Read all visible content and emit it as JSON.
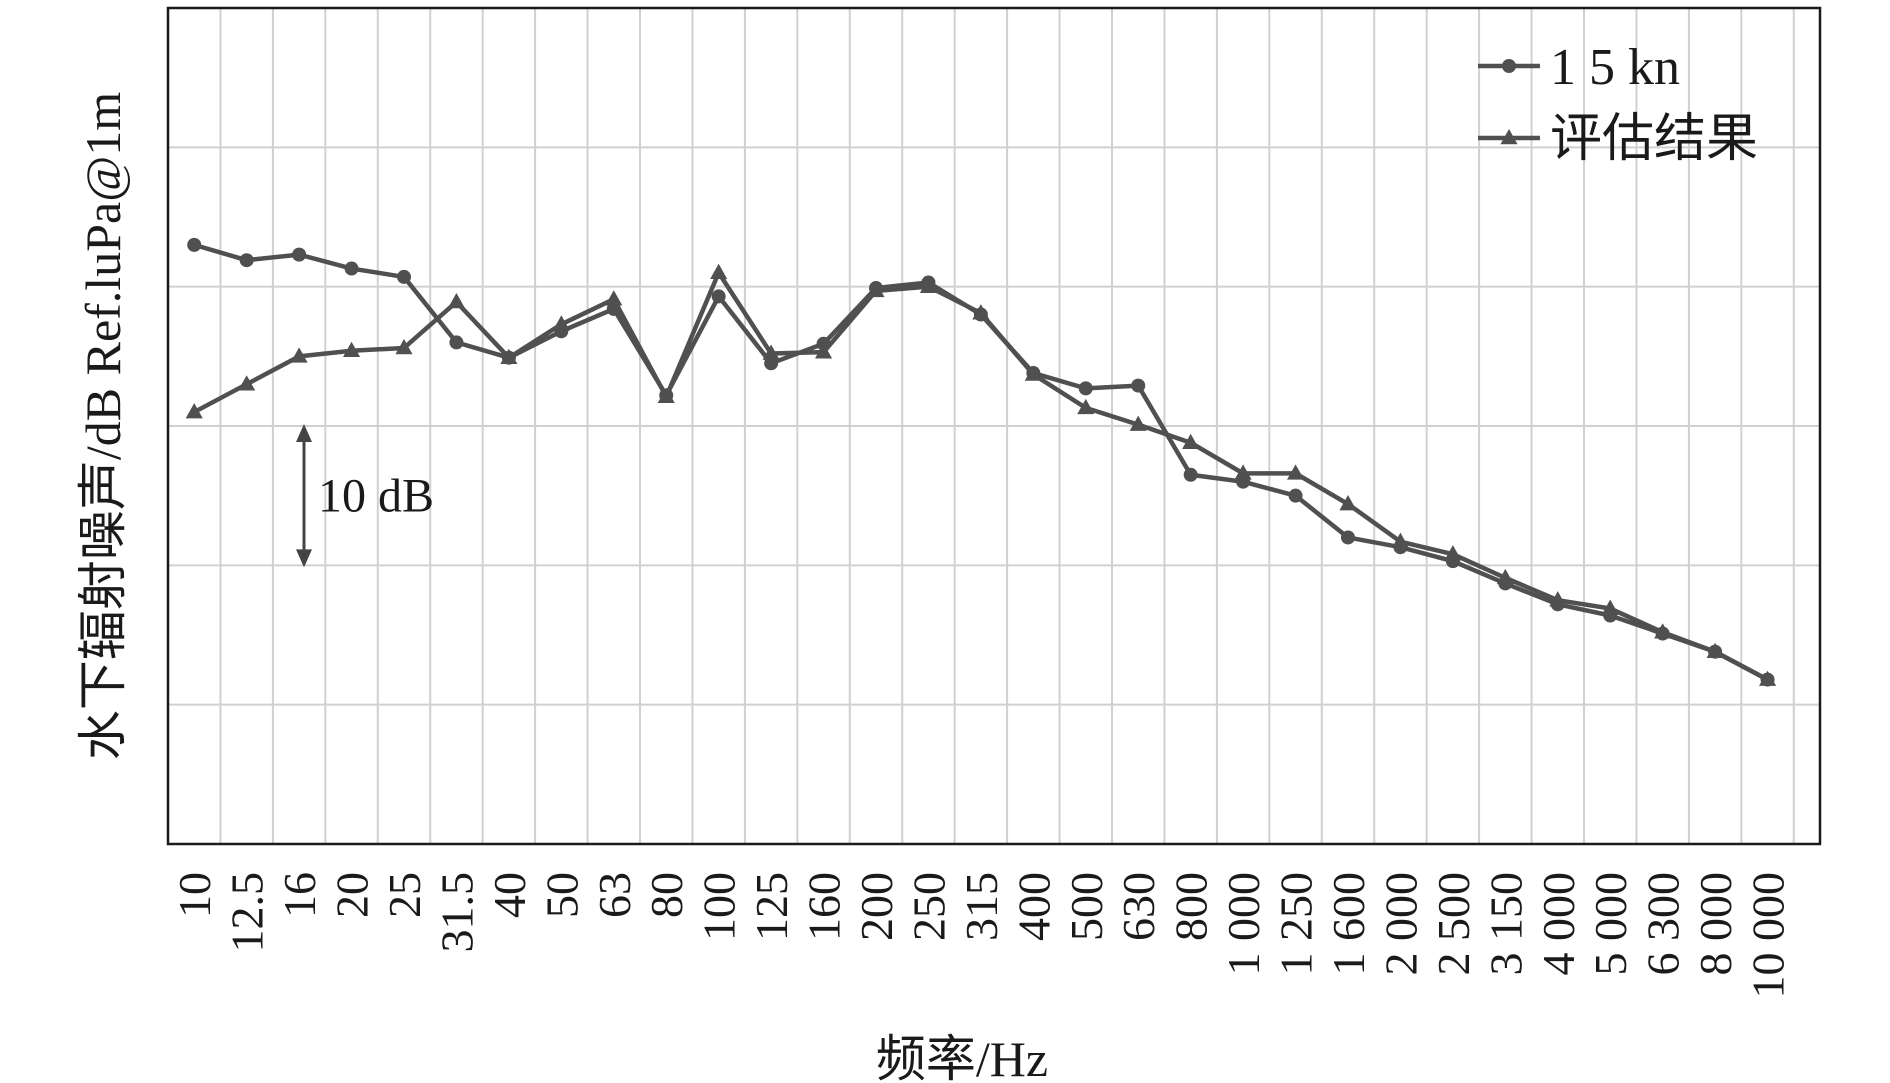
{
  "chart_data": {
    "type": "line",
    "title": "",
    "xlabel": "频率/Hz",
    "ylabel": "水下辐射噪声/dB Ref.luPa@1m",
    "categories": [
      "10",
      "12.5",
      "16",
      "20",
      "25",
      "31.5",
      "40",
      "50",
      "63",
      "80",
      "100",
      "125",
      "160",
      "200",
      "250",
      "315",
      "400",
      "500",
      "630",
      "800",
      "1 000",
      "1 250",
      "1 600",
      "2 000",
      "2 500",
      "3 150",
      "4 000",
      "5 000",
      "6 300",
      "8 000",
      "10 000"
    ],
    "ylim": [
      0,
      60
    ],
    "grid": true,
    "legend_position": "top-right",
    "scale_bar": {
      "label": "10 dB",
      "value": 10
    },
    "series": [
      {
        "name": "1 5 kn",
        "marker": "circle",
        "color": "#505050",
        "values": [
          43.0,
          41.9,
          42.3,
          41.3,
          40.7,
          36.0,
          34.9,
          36.8,
          38.4,
          32.2,
          39.3,
          34.5,
          35.9,
          39.9,
          40.3,
          38.0,
          33.8,
          32.7,
          32.9,
          26.5,
          26.0,
          25.0,
          22.0,
          21.3,
          20.3,
          18.7,
          17.2,
          16.4,
          15.1,
          13.8,
          11.8
        ]
      },
      {
        "name": "评估结果",
        "marker": "triangle",
        "color": "#505050",
        "values": [
          31.0,
          33.0,
          35.0,
          35.4,
          35.6,
          38.9,
          34.9,
          37.3,
          39.1,
          32.1,
          41.0,
          35.2,
          35.3,
          39.7,
          40.0,
          38.1,
          33.7,
          31.3,
          30.1,
          28.8,
          26.6,
          26.6,
          24.4,
          21.7,
          20.8,
          19.1,
          17.5,
          16.9,
          15.2,
          13.8,
          11.8
        ]
      }
    ]
  }
}
